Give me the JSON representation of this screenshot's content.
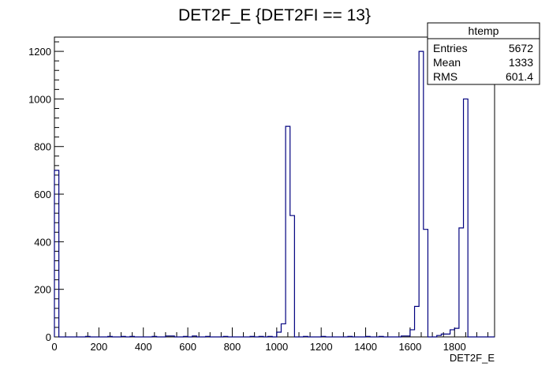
{
  "chart_data": {
    "type": "bar",
    "title": "DET2F_E {DET2FI == 13}",
    "xlabel": "DET2F_E",
    "ylabel": "",
    "xlim": [
      0,
      1980
    ],
    "ylim": [
      0,
      1260
    ],
    "x_ticks": [
      0,
      200,
      400,
      600,
      800,
      1000,
      1200,
      1400,
      1600,
      1800
    ],
    "y_ticks": [
      0,
      200,
      400,
      600,
      800,
      1000,
      1200
    ],
    "bin_width": 20,
    "line_color": "#00007f",
    "grid": false,
    "legend": "top-right",
    "stats_box": {
      "name": "htemp",
      "rows": [
        {
          "label": "Entries",
          "value": "5672"
        },
        {
          "label": "Mean",
          "value": "1333"
        },
        {
          "label": "RMS",
          "value": "601.4"
        }
      ]
    },
    "bins": [
      [
        0,
        700
      ],
      [
        20,
        0
      ],
      [
        40,
        0
      ],
      [
        60,
        0
      ],
      [
        80,
        0
      ],
      [
        100,
        0
      ],
      [
        120,
        0
      ],
      [
        140,
        2
      ],
      [
        160,
        0
      ],
      [
        180,
        0
      ],
      [
        200,
        0
      ],
      [
        220,
        0
      ],
      [
        240,
        2
      ],
      [
        260,
        0
      ],
      [
        280,
        0
      ],
      [
        300,
        2
      ],
      [
        320,
        0
      ],
      [
        340,
        2
      ],
      [
        360,
        0
      ],
      [
        380,
        0
      ],
      [
        400,
        0
      ],
      [
        420,
        0
      ],
      [
        440,
        2
      ],
      [
        460,
        0
      ],
      [
        480,
        0
      ],
      [
        500,
        4
      ],
      [
        520,
        4
      ],
      [
        540,
        0
      ],
      [
        560,
        0
      ],
      [
        580,
        2
      ],
      [
        600,
        0
      ],
      [
        620,
        4
      ],
      [
        640,
        0
      ],
      [
        660,
        0
      ],
      [
        680,
        2
      ],
      [
        700,
        0
      ],
      [
        720,
        0
      ],
      [
        740,
        0
      ],
      [
        760,
        2
      ],
      [
        780,
        0
      ],
      [
        800,
        0
      ],
      [
        820,
        0
      ],
      [
        840,
        0
      ],
      [
        860,
        0
      ],
      [
        880,
        2
      ],
      [
        900,
        0
      ],
      [
        920,
        2
      ],
      [
        940,
        0
      ],
      [
        960,
        2
      ],
      [
        980,
        0
      ],
      [
        1000,
        20
      ],
      [
        1020,
        55
      ],
      [
        1040,
        885
      ],
      [
        1060,
        510
      ],
      [
        1080,
        0
      ],
      [
        1100,
        0
      ],
      [
        1120,
        2
      ],
      [
        1140,
        0
      ],
      [
        1160,
        0
      ],
      [
        1180,
        0
      ],
      [
        1200,
        2
      ],
      [
        1220,
        0
      ],
      [
        1240,
        0
      ],
      [
        1260,
        0
      ],
      [
        1280,
        0
      ],
      [
        1300,
        0
      ],
      [
        1320,
        2
      ],
      [
        1340,
        0
      ],
      [
        1360,
        0
      ],
      [
        1380,
        0
      ],
      [
        1400,
        2
      ],
      [
        1420,
        0
      ],
      [
        1440,
        0
      ],
      [
        1460,
        2
      ],
      [
        1480,
        0
      ],
      [
        1500,
        0
      ],
      [
        1520,
        0
      ],
      [
        1540,
        0
      ],
      [
        1560,
        4
      ],
      [
        1580,
        4
      ],
      [
        1600,
        30
      ],
      [
        1620,
        128
      ],
      [
        1640,
        1200
      ],
      [
        1660,
        452
      ],
      [
        1680,
        0
      ],
      [
        1700,
        0
      ],
      [
        1720,
        6
      ],
      [
        1740,
        12
      ],
      [
        1760,
        12
      ],
      [
        1780,
        30
      ],
      [
        1800,
        36
      ],
      [
        1820,
        458
      ],
      [
        1840,
        1000
      ],
      [
        1860,
        0
      ],
      [
        1880,
        0
      ],
      [
        1900,
        0
      ],
      [
        1920,
        0
      ],
      [
        1940,
        0
      ],
      [
        1960,
        0
      ]
    ]
  }
}
